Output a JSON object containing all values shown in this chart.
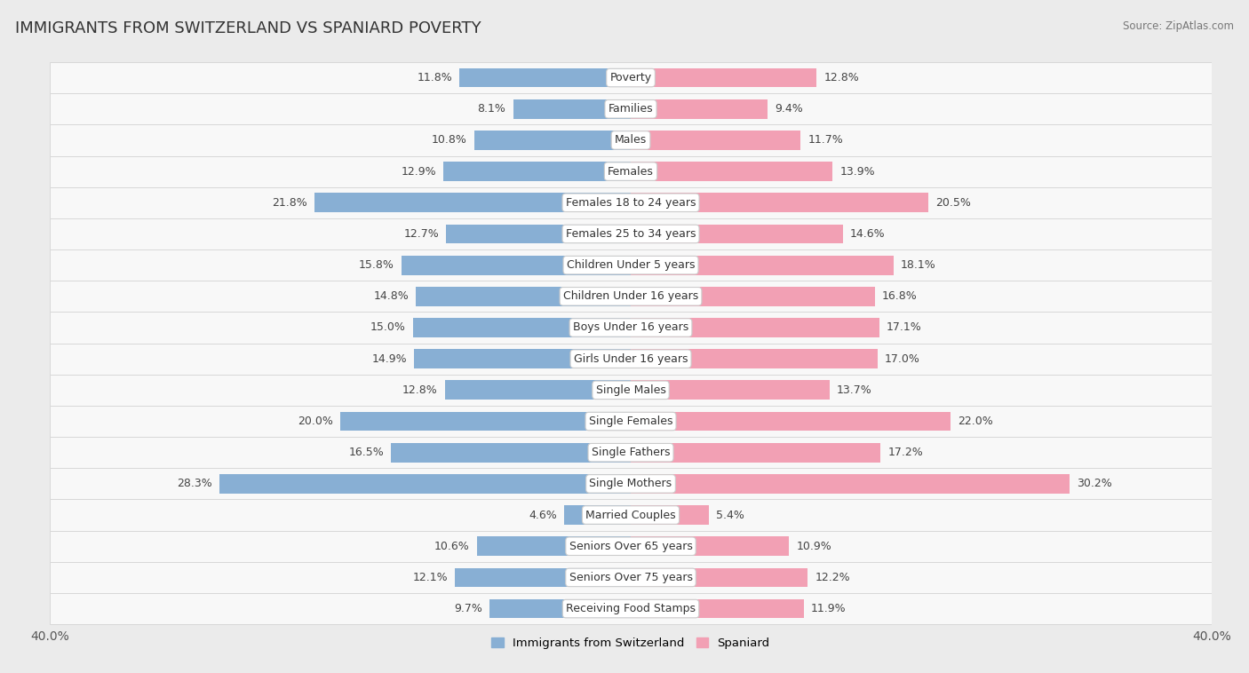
{
  "title": "IMMIGRANTS FROM SWITZERLAND VS SPANIARD POVERTY",
  "source": "Source: ZipAtlas.com",
  "categories": [
    "Poverty",
    "Families",
    "Males",
    "Females",
    "Females 18 to 24 years",
    "Females 25 to 34 years",
    "Children Under 5 years",
    "Children Under 16 years",
    "Boys Under 16 years",
    "Girls Under 16 years",
    "Single Males",
    "Single Females",
    "Single Fathers",
    "Single Mothers",
    "Married Couples",
    "Seniors Over 65 years",
    "Seniors Over 75 years",
    "Receiving Food Stamps"
  ],
  "swiss_values": [
    11.8,
    8.1,
    10.8,
    12.9,
    21.8,
    12.7,
    15.8,
    14.8,
    15.0,
    14.9,
    12.8,
    20.0,
    16.5,
    28.3,
    4.6,
    10.6,
    12.1,
    9.7
  ],
  "spaniard_values": [
    12.8,
    9.4,
    11.7,
    13.9,
    20.5,
    14.6,
    18.1,
    16.8,
    17.1,
    17.0,
    13.7,
    22.0,
    17.2,
    30.2,
    5.4,
    10.9,
    12.2,
    11.9
  ],
  "swiss_color": "#88afd4",
  "spaniard_color": "#f2a0b4",
  "axis_max": 40.0,
  "bar_height": 0.62,
  "background_color": "#ebebeb",
  "row_bg_color": "#f8f8f8",
  "row_line_color": "#d8d8d8",
  "label_fontsize": 9.0,
  "title_fontsize": 13,
  "value_fontsize": 9.0,
  "legend_fontsize": 9.5
}
